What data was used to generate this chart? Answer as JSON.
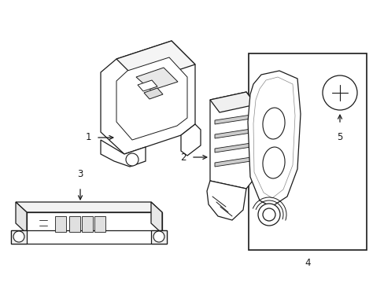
{
  "bg_color": "#ffffff",
  "line_color": "#1a1a1a",
  "line_width": 0.9,
  "label_fontsize": 8.5,
  "figsize": [
    4.89,
    3.6
  ],
  "dpi": 100
}
